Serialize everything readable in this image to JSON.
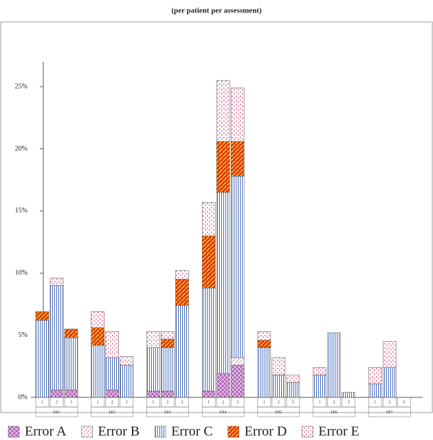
{
  "chart_data": {
    "type": "stacked-bar",
    "subtitle": "(per patient per assessment)",
    "categories": [
      "1",
      "2",
      "3",
      "1",
      "2",
      "3",
      "1",
      "2",
      "3",
      "1",
      "2",
      "3",
      "1",
      "2",
      "3",
      "1",
      "2",
      "3",
      "1",
      "2",
      "3"
    ],
    "groups": [
      "FP1",
      "FP2",
      "FP3",
      "FP4",
      "FP5",
      "FP6",
      "FP7"
    ],
    "series": [
      {
        "name": "Error A",
        "color": "#b060b8",
        "values": [
          0,
          0.6,
          0.6,
          0,
          0.6,
          0,
          0.5,
          0.5,
          0,
          0.5,
          1.9,
          2.6,
          0,
          0,
          0,
          0,
          0,
          0,
          0,
          0,
          0
        ]
      },
      {
        "name": "Error B",
        "color": "#e07aa0",
        "values": [
          0,
          0,
          0,
          0,
          0,
          0,
          0,
          0,
          0,
          0,
          0,
          0.6,
          0,
          0,
          0,
          0,
          0,
          0,
          0,
          0,
          0
        ]
      },
      {
        "name": "Error C",
        "color": "#2c55b0",
        "values": [
          6.2,
          8.4,
          4.2,
          4.2,
          2.6,
          2.6,
          3.5,
          3.5,
          7.4,
          8.3,
          14.6,
          14.6,
          4.0,
          1.8,
          1.2,
          1.8,
          5.2,
          0.4,
          1.1,
          2.4,
          0
        ]
      },
      {
        "name": "Error D",
        "color": "#e23010",
        "values": [
          0.7,
          0,
          0.7,
          1.4,
          0,
          0,
          0,
          0.7,
          2.1,
          4.2,
          4.1,
          2.8,
          0.6,
          0,
          0,
          0,
          0,
          0,
          0,
          0,
          0
        ]
      },
      {
        "name": "Error E",
        "color": "#d0306a",
        "values": [
          0,
          0.6,
          0,
          1.3,
          2.1,
          0.7,
          1.3,
          0.6,
          0.7,
          2.7,
          4.9,
          4.3,
          0.7,
          1.4,
          0.6,
          0.6,
          0,
          0,
          1.3,
          2.1,
          0
        ]
      }
    ],
    "ylim": [
      0,
      27
    ],
    "yticks": [
      {
        "value": 0,
        "label": "0%"
      },
      {
        "value": 5,
        "label": "5%"
      },
      {
        "value": 10,
        "label": "10%"
      },
      {
        "value": 15,
        "label": "15%"
      },
      {
        "value": 20,
        "label": "20%"
      },
      {
        "value": 25,
        "label": "25%"
      }
    ]
  }
}
